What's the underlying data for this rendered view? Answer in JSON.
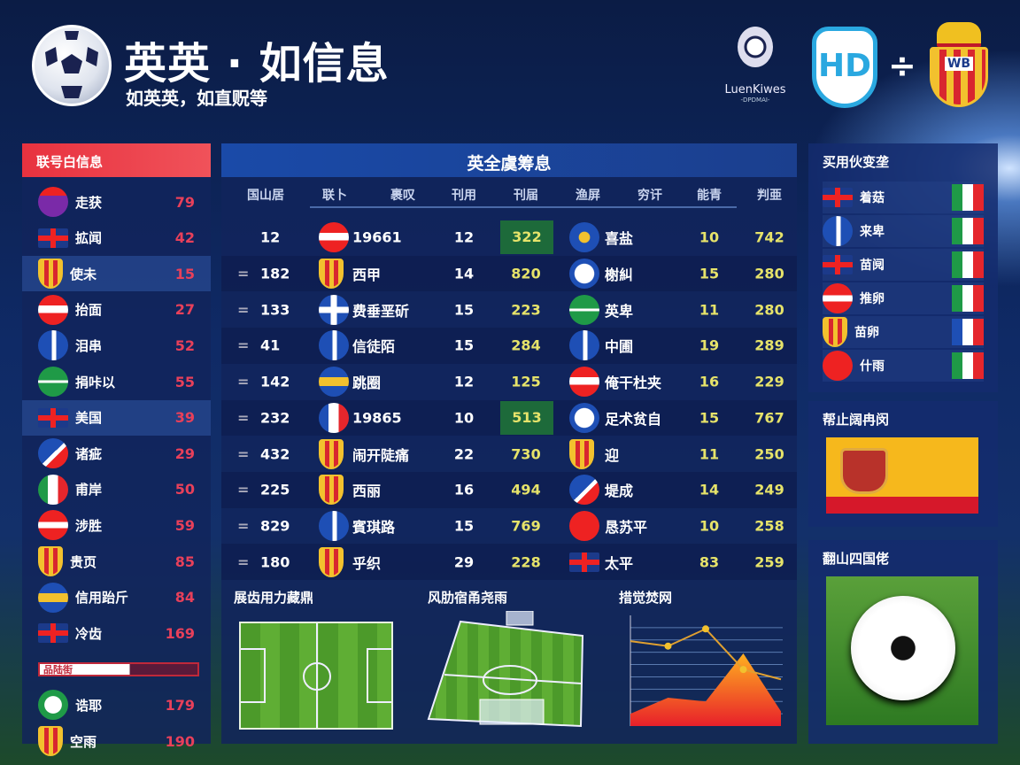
{
  "header": {
    "title": "英英 · 如信息",
    "subtitle": "如英英，如直贶等",
    "league_logo_text": "LuenKiwes",
    "league_logo_sub": "-DPDMAI-",
    "vs_symbol": "÷",
    "team_a_logo": "HD",
    "team_b_logo": "WB"
  },
  "left_panel": {
    "title": "联号白信息",
    "rows": [
      {
        "icon": "circle-purple",
        "name": "走获",
        "value": "79"
      },
      {
        "icon": "flag-uk",
        "name": "拡闻",
        "value": "42"
      },
      {
        "icon": "shield",
        "name": "使未",
        "value": "15",
        "highlight": true
      },
      {
        "icon": "circle-red-white",
        "name": "抬面",
        "value": "27"
      },
      {
        "icon": "circle-blue-white",
        "name": "泪串",
        "value": "52"
      },
      {
        "icon": "circle-green",
        "name": "捐咔以",
        "value": "55"
      },
      {
        "icon": "flag-uk",
        "name": "美国",
        "value": "39",
        "highlight": true
      },
      {
        "icon": "circle-blue-red",
        "name": "诸疵",
        "value": "29"
      },
      {
        "icon": "flag-italy",
        "name": "甫岸",
        "value": "50"
      },
      {
        "icon": "circle-red-stripe",
        "name": "涉胜",
        "value": "59"
      },
      {
        "icon": "shield",
        "name": "贵页",
        "value": "85"
      },
      {
        "icon": "circle-blue-yellow",
        "name": "信用跆斤",
        "value": "84"
      },
      {
        "icon": "flag-uk",
        "name": "冷齿",
        "value": "169"
      },
      {
        "icon": "bar",
        "name": "品陆街",
        "value": ""
      },
      {
        "icon": "circle-green-white",
        "name": "诰耶",
        "value": "179"
      },
      {
        "icon": "shield",
        "name": "空雨",
        "value": "190"
      }
    ]
  },
  "center_panel": {
    "title": "英全虞筹息",
    "columns": [
      "国山居",
      "联卜",
      "裹叹",
      "刊用",
      "刊届",
      "渔屏",
      "穷讦",
      "能青",
      "判亜"
    ],
    "rows": [
      {
        "mark": "",
        "rank": "12",
        "icon1": "circle-red-white",
        "team1": "19661",
        "played": "12",
        "pts": "322",
        "pts_hl": true,
        "icon2": "circle-blue",
        "team2": "喜盐",
        "n1": "10",
        "n2": "742"
      },
      {
        "mark": "=",
        "rank": "182",
        "icon1": "shield",
        "team1": "西甲",
        "played": "14",
        "pts": "820",
        "icon2": "circle-white-blue",
        "team2": "榭糾",
        "n1": "15",
        "n2": "280"
      },
      {
        "mark": "=",
        "rank": "133",
        "icon1": "circle-cross",
        "team1": "费垂垩斫",
        "played": "15",
        "pts": "223",
        "icon2": "circle-green",
        "team2": "英卑",
        "n1": "11",
        "n2": "280"
      },
      {
        "mark": "=",
        "rank": "41",
        "icon1": "circle-blue-white",
        "team1": "信徒陌",
        "played": "15",
        "pts": "284",
        "icon2": "circle-blue-white",
        "team2": "中圃",
        "n1": "19",
        "n2": "289"
      },
      {
        "mark": "=",
        "rank": "142",
        "icon1": "circle-blue-yellow",
        "team1": "跳圈",
        "played": "12",
        "pts": "125",
        "icon2": "circle-red-white",
        "team2": "俺干杜夹",
        "n1": "16",
        "n2": "229"
      },
      {
        "mark": "=",
        "rank": "232",
        "icon1": "circle-french",
        "team1": "19865",
        "played": "10",
        "pts": "513",
        "pts_hl": true,
        "icon2": "circle-white-blue",
        "team2": "足术贫自",
        "n1": "15",
        "n2": "767"
      },
      {
        "mark": "=",
        "rank": "432",
        "icon1": "shield",
        "team1": "闹开陡痛",
        "played": "22",
        "pts": "730",
        "icon2": "shield",
        "team2": "迎",
        "n1": "11",
        "n2": "250"
      },
      {
        "mark": "=",
        "rank": "225",
        "icon1": "shield",
        "team1": "西丽",
        "played": "16",
        "pts": "494",
        "icon2": "circle-blue-red",
        "team2": "堤成",
        "n1": "14",
        "n2": "249"
      },
      {
        "mark": "=",
        "rank": "829",
        "icon1": "circle-blue-white",
        "team1": "賓琪路",
        "played": "15",
        "pts": "769",
        "icon2": "circle-china",
        "team2": "恳苏平",
        "n1": "10",
        "n2": "258"
      },
      {
        "mark": "=",
        "rank": "180",
        "icon1": "shield",
        "team1": "乎织",
        "played": "29",
        "pts": "228",
        "icon2": "flag-uk",
        "team2": "太平",
        "n1": "83",
        "n2": "259"
      }
    ],
    "sections": [
      "展齿用力藏鼎",
      "风肋宿甬尧雨",
      "措觉焚网"
    ]
  },
  "trend_chart": {
    "line": [
      6.9,
      6.5,
      7.9,
      4.6,
      3.8
    ],
    "area": [
      1.0,
      2.3,
      2.0,
      5.9,
      1.2
    ],
    "line_color": "#e0a030",
    "area_colors": [
      "#ffb020",
      "#e8202a"
    ]
  },
  "right_panel": {
    "box1_title": "买用伙变垄",
    "rows": [
      {
        "icon": "flag-uk",
        "name": "着菇",
        "flag": "italy"
      },
      {
        "icon": "circle-blue-white",
        "name": "来卑",
        "flag": "italy"
      },
      {
        "icon": "flag-uk",
        "name": "苗阋",
        "flag": "italy"
      },
      {
        "icon": "circle-red-stripe",
        "name": "推卵",
        "flag": "italy"
      },
      {
        "icon": "shield",
        "name": "苗卵",
        "flag": "france"
      },
      {
        "icon": "circle-china",
        "name": "什雨",
        "flag": "italy"
      }
    ],
    "box2_title": "帮止阔冉闵",
    "box3_title": "翻山四国佬"
  }
}
